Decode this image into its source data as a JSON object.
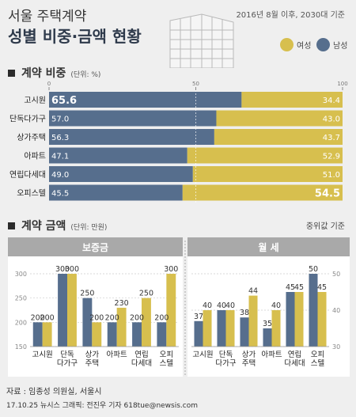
{
  "header": {
    "title_line1": "서울 주택계약",
    "title_line2": "성별 비중·금액 현황",
    "subtitle": "2016년 8월 이후, 2030대 기준",
    "legend": [
      {
        "label": "여성",
        "color": "#d7bf4e"
      },
      {
        "label": "남성",
        "color": "#566e8d"
      }
    ]
  },
  "section1": {
    "title": "계약 비중",
    "unit": "(단위: %)"
  },
  "section2": {
    "title": "계약 금액",
    "unit": "(단위: 만원)",
    "note": "중위값 기준"
  },
  "chart_data": [
    {
      "type": "bar",
      "orientation": "horizontal-stacked",
      "title": "계약 비중",
      "axis_ticks": [
        "0",
        "50",
        "100"
      ],
      "xlim": [
        0,
        100
      ],
      "categories": [
        "고시원",
        "단독다가구",
        "상가주택",
        "아파트",
        "연립다세대",
        "오피스텔"
      ],
      "series": [
        {
          "name": "남성",
          "color": "#566e8d",
          "values": [
            65.6,
            57.0,
            56.3,
            47.1,
            49.0,
            45.5
          ],
          "labels": [
            "65.6",
            "57.0",
            "56.3",
            "47.1",
            "49.0",
            "45.5"
          ]
        },
        {
          "name": "여성",
          "color": "#d7bf4e",
          "values": [
            34.4,
            43.0,
            43.7,
            52.9,
            51.0,
            54.5
          ],
          "labels": [
            "34.4",
            "43.0",
            "43.7",
            "52.9",
            "51.0",
            "54.5"
          ]
        }
      ]
    },
    {
      "type": "bar",
      "title": "보증금",
      "ylim": [
        150,
        300
      ],
      "yticks": [
        150,
        200,
        250,
        300
      ],
      "categories": [
        "고시원",
        "단독\n다가구",
        "상가\n주택",
        "아파트",
        "연립\n다세대",
        "오피\n스텔"
      ],
      "series": [
        {
          "name": "남성",
          "color": "#566e8d",
          "values": [
            200,
            300,
            250,
            200,
            200,
            200
          ]
        },
        {
          "name": "여성",
          "color": "#d7bf4e",
          "values": [
            200,
            300,
            200,
            230,
            250,
            300
          ]
        }
      ]
    },
    {
      "type": "bar",
      "title": "월 세",
      "ylim": [
        30,
        50
      ],
      "yticks": [
        30,
        40,
        50
      ],
      "categories": [
        "고시원",
        "단독\n다가구",
        "상가\n주택",
        "아파트",
        "연립\n다세대",
        "오피\n스텔"
      ],
      "series": [
        {
          "name": "남성",
          "color": "#566e8d",
          "values": [
            37,
            40,
            38,
            35,
            45,
            50
          ]
        },
        {
          "name": "여성",
          "color": "#d7bf4e",
          "values": [
            40,
            40,
            44,
            40,
            45,
            45
          ]
        }
      ]
    }
  ],
  "footer": {
    "source": "자료 : 임종성 의원실, 서울시",
    "credit": "17.10.25  뉴시스 그래픽: 전진우 기자 618tue@newsis.com"
  }
}
